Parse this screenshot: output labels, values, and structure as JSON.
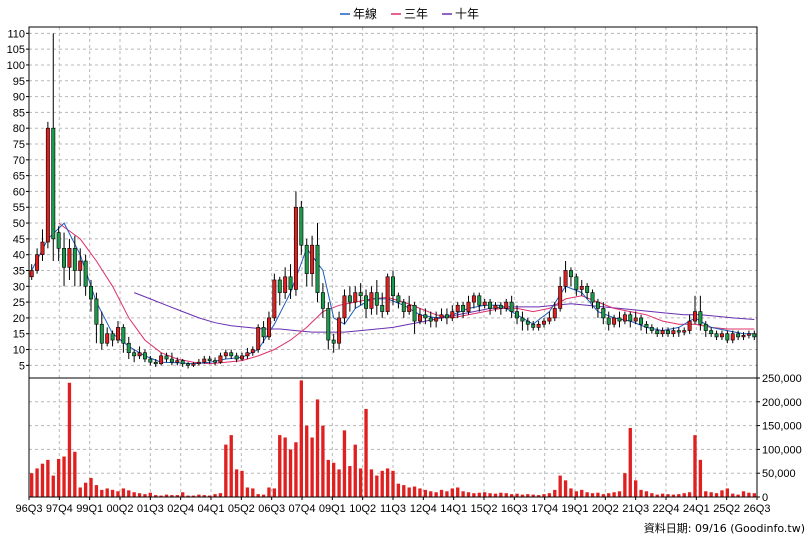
{
  "chart_data": {
    "type": "candlestick",
    "legend": {
      "placement": "top-center",
      "items": [
        {
          "label": "年線",
          "color": "#1f5fbf"
        },
        {
          "label": "三年",
          "color": "#e0306a"
        },
        {
          "label": "十年",
          "color": "#6a2fb0"
        }
      ]
    },
    "credit": "資料日期: 09/16  (Goodinfo.tw)",
    "x_labels": [
      "96Q3",
      "97Q4",
      "99Q1",
      "00Q2",
      "01Q3",
      "02Q4",
      "04Q1",
      "05Q2",
      "06Q3",
      "07Q4",
      "09Q1",
      "10Q2",
      "11Q3",
      "12Q4",
      "14Q1",
      "15Q2",
      "16Q3",
      "17Q4",
      "19Q1",
      "20Q2",
      "21Q3",
      "22Q4",
      "24Q1",
      "25Q2",
      "26Q3"
    ],
    "price_axis": {
      "ticks": [
        5,
        10,
        15,
        20,
        25,
        30,
        35,
        40,
        45,
        50,
        55,
        60,
        65,
        70,
        75,
        80,
        85,
        90,
        95,
        100,
        105,
        110
      ],
      "ylim": [
        1,
        112
      ],
      "grid": true
    },
    "volume_axis": {
      "ticks": [
        0,
        50000,
        100000,
        150000,
        200000,
        250000
      ],
      "tick_labels": [
        "0",
        "50,000",
        "100,000",
        "150,000",
        "200,000",
        "250,000"
      ],
      "ylim": [
        0,
        250000
      ],
      "grid": true
    },
    "colors": {
      "up": "#e02020",
      "down": "#1a9a4a",
      "wick": "#000000",
      "volume": "#e02020",
      "grid": "#b8b8b8"
    },
    "candles": [
      [
        33,
        35,
        32,
        37
      ],
      [
        35,
        40,
        34,
        42
      ],
      [
        40,
        44,
        38,
        48
      ],
      [
        44,
        80,
        42,
        82
      ],
      [
        80,
        45,
        38,
        110
      ],
      [
        47,
        42,
        38,
        49
      ],
      [
        42,
        36,
        30,
        47
      ],
      [
        36,
        42,
        32,
        45
      ],
      [
        42,
        35,
        30,
        46
      ],
      [
        35,
        38,
        30,
        42
      ],
      [
        38,
        30,
        27,
        40
      ],
      [
        30,
        26,
        22,
        32
      ],
      [
        26,
        18,
        12,
        28
      ],
      [
        18,
        12,
        10,
        22
      ],
      [
        12,
        15,
        11,
        17
      ],
      [
        15,
        13,
        11,
        16
      ],
      [
        13,
        17,
        12,
        19
      ],
      [
        17,
        12,
        9,
        18
      ],
      [
        12,
        9,
        7,
        14
      ],
      [
        9,
        8,
        6,
        10
      ],
      [
        8,
        9,
        7,
        11
      ],
      [
        9,
        7,
        6,
        10
      ],
      [
        7,
        6,
        5,
        8
      ],
      [
        6,
        5.5,
        4.5,
        7
      ],
      [
        5.5,
        8,
        5,
        9
      ],
      [
        8,
        7,
        6,
        9
      ],
      [
        7,
        6,
        5,
        9
      ],
      [
        6,
        6.5,
        5,
        7.5
      ],
      [
        6.5,
        5.5,
        4.5,
        7
      ],
      [
        5.5,
        5,
        4,
        6
      ],
      [
        5,
        5.5,
        4.5,
        6
      ],
      [
        5.5,
        6,
        5,
        7
      ],
      [
        6,
        7,
        5.5,
        8
      ],
      [
        7,
        6.5,
        5.5,
        8
      ],
      [
        6.5,
        6,
        5,
        7.5
      ],
      [
        6,
        8,
        5.5,
        9
      ],
      [
        8,
        9,
        7,
        10
      ],
      [
        9,
        8,
        7,
        10
      ],
      [
        8,
        7,
        6,
        9
      ],
      [
        7,
        8,
        6.5,
        9
      ],
      [
        8,
        9,
        7,
        10.5
      ],
      [
        9,
        10,
        8,
        11
      ],
      [
        10,
        17,
        9,
        18
      ],
      [
        17,
        14,
        12,
        19
      ],
      [
        14,
        20,
        13,
        22
      ],
      [
        20,
        32,
        19,
        34
      ],
      [
        32,
        28,
        24,
        33
      ],
      [
        28,
        33,
        26,
        36
      ],
      [
        33,
        29,
        26,
        37
      ],
      [
        29,
        55,
        27,
        60
      ],
      [
        55,
        43,
        40,
        57
      ],
      [
        43,
        34,
        30,
        45
      ],
      [
        34,
        43,
        30,
        46
      ],
      [
        43,
        28,
        25,
        50
      ],
      [
        28,
        23,
        20,
        31
      ],
      [
        23,
        13,
        10,
        25
      ],
      [
        13,
        12,
        9,
        15
      ],
      [
        12,
        20,
        10,
        22
      ],
      [
        20,
        27,
        18,
        29
      ],
      [
        27,
        25,
        22,
        30
      ],
      [
        25,
        28,
        23,
        30
      ],
      [
        28,
        27,
        24,
        31
      ],
      [
        27,
        23,
        20,
        29
      ],
      [
        23,
        28,
        21,
        30
      ],
      [
        28,
        24,
        21,
        32
      ],
      [
        24,
        22,
        20,
        28
      ],
      [
        22,
        33,
        21,
        34
      ],
      [
        33,
        27,
        24,
        35
      ],
      [
        27,
        25,
        23,
        28
      ],
      [
        25,
        22,
        20,
        26
      ],
      [
        22,
        24,
        21,
        27
      ],
      [
        24,
        19,
        15,
        25
      ],
      [
        19,
        21,
        18,
        23
      ],
      [
        21,
        20,
        18,
        23
      ],
      [
        20,
        19,
        17,
        22
      ],
      [
        19,
        20,
        17,
        22
      ],
      [
        20,
        21,
        19,
        23
      ],
      [
        21,
        20,
        18,
        23
      ],
      [
        20,
        22,
        19,
        24
      ],
      [
        22,
        24,
        20,
        25
      ],
      [
        24,
        22,
        20,
        25
      ],
      [
        22,
        25,
        21,
        27
      ],
      [
        25,
        27,
        23,
        28
      ],
      [
        27,
        24,
        22,
        28
      ],
      [
        24,
        25,
        23,
        26
      ],
      [
        25,
        23,
        21,
        26
      ],
      [
        23,
        24,
        22,
        25
      ],
      [
        24,
        23,
        21,
        25
      ],
      [
        23,
        25,
        22,
        26
      ],
      [
        25,
        22,
        20,
        27
      ],
      [
        22,
        20,
        18,
        24
      ],
      [
        20,
        19,
        16,
        22
      ],
      [
        19,
        18,
        16,
        20
      ],
      [
        18,
        17,
        16,
        19
      ],
      [
        17,
        18,
        16,
        19
      ],
      [
        18,
        19,
        17,
        20
      ],
      [
        19,
        20,
        18,
        22
      ],
      [
        20,
        23,
        19,
        25
      ],
      [
        23,
        30,
        22,
        33
      ],
      [
        30,
        35,
        28,
        38
      ],
      [
        35,
        33,
        30,
        36
      ],
      [
        33,
        29,
        27,
        34
      ],
      [
        29,
        30,
        27,
        32
      ],
      [
        30,
        28,
        26,
        31
      ],
      [
        28,
        25,
        23,
        29
      ],
      [
        25,
        23,
        20,
        26
      ],
      [
        23,
        20,
        18,
        25
      ],
      [
        20,
        18,
        16,
        22
      ],
      [
        18,
        20,
        17,
        21
      ],
      [
        20,
        19,
        17,
        22
      ],
      [
        19,
        21,
        18,
        22
      ],
      [
        21,
        19,
        17,
        22
      ],
      [
        19,
        20,
        18,
        22
      ],
      [
        20,
        18,
        16,
        21
      ],
      [
        18,
        17,
        15,
        19
      ],
      [
        17,
        16,
        15,
        18
      ],
      [
        16,
        15,
        14,
        17
      ],
      [
        15,
        16,
        14,
        17
      ],
      [
        16,
        15,
        14,
        17
      ],
      [
        15,
        16,
        14,
        17
      ],
      [
        16,
        15.5,
        14,
        17
      ],
      [
        15.5,
        16,
        14.5,
        17
      ],
      [
        16,
        19,
        15,
        21
      ],
      [
        19,
        22,
        18,
        27
      ],
      [
        22,
        18,
        16,
        27
      ],
      [
        18,
        16,
        14,
        19
      ],
      [
        16,
        15,
        14,
        17
      ],
      [
        15,
        14,
        13,
        16
      ],
      [
        14,
        15,
        13,
        16
      ],
      [
        15,
        13,
        12,
        16
      ],
      [
        13,
        15,
        12,
        16
      ],
      [
        15,
        14,
        13,
        16
      ],
      [
        14,
        14.5,
        13,
        15.5
      ],
      [
        14.5,
        15,
        13.5,
        16
      ],
      [
        15,
        14,
        13,
        16
      ]
    ],
    "volume": [
      50000,
      60000,
      70000,
      78000,
      45000,
      80000,
      85000,
      240000,
      95000,
      20000,
      30000,
      40000,
      25000,
      15000,
      18000,
      15000,
      12000,
      18000,
      14000,
      10000,
      8000,
      6000,
      9000,
      4000,
      3000,
      5000,
      4000,
      4000,
      10000,
      3000,
      3000,
      5000,
      4000,
      3000,
      6000,
      8000,
      110000,
      130000,
      58000,
      55000,
      20000,
      18000,
      6000,
      5000,
      20000,
      18000,
      130000,
      125000,
      100000,
      115000,
      245000,
      150000,
      125000,
      205000,
      150000,
      78000,
      72000,
      58000,
      140000,
      65000,
      110000,
      60000,
      185000,
      58000,
      45000,
      55000,
      60000,
      55000,
      28000,
      25000,
      20000,
      22000,
      18000,
      15000,
      12000,
      10000,
      15000,
      12000,
      18000,
      20000,
      12000,
      10000,
      8000,
      9000,
      10000,
      8000,
      7000,
      9000,
      8000,
      6000,
      7000,
      5000,
      6000,
      5000,
      4000,
      6000,
      8000,
      15000,
      45000,
      35000,
      18000,
      12000,
      15000,
      10000,
      8000,
      9000,
      6000,
      8000,
      10000,
      12000,
      50000,
      145000,
      35000,
      15000,
      12000,
      8000,
      5000,
      7000,
      6000,
      5000,
      6000,
      8000,
      10000,
      130000,
      78000,
      12000,
      10000,
      8000,
      14000,
      18000,
      7000,
      5000,
      12000,
      9000,
      8000
    ],
    "ma_year": [
      [
        0,
        35
      ],
      [
        3,
        45
      ],
      [
        6,
        50
      ],
      [
        9,
        40
      ],
      [
        12,
        25
      ],
      [
        15,
        15
      ],
      [
        18,
        11
      ],
      [
        21,
        8
      ],
      [
        24,
        6
      ],
      [
        27,
        5.8
      ],
      [
        30,
        5.5
      ],
      [
        33,
        6
      ],
      [
        36,
        7
      ],
      [
        39,
        7.5
      ],
      [
        42,
        10
      ],
      [
        45,
        18
      ],
      [
        48,
        28
      ],
      [
        51,
        42
      ],
      [
        54,
        35
      ],
      [
        56,
        20
      ],
      [
        58,
        18
      ],
      [
        60,
        23
      ],
      [
        63,
        26
      ],
      [
        66,
        26
      ],
      [
        69,
        24
      ],
      [
        72,
        21
      ],
      [
        75,
        20
      ],
      [
        78,
        21
      ],
      [
        81,
        23
      ],
      [
        84,
        24
      ],
      [
        87,
        24
      ],
      [
        90,
        21
      ],
      [
        93,
        18
      ],
      [
        96,
        22
      ],
      [
        99,
        30
      ],
      [
        102,
        28
      ],
      [
        105,
        22
      ],
      [
        108,
        20
      ],
      [
        111,
        19
      ],
      [
        114,
        17
      ],
      [
        117,
        16
      ],
      [
        120,
        17
      ],
      [
        123,
        20
      ],
      [
        126,
        17
      ],
      [
        129,
        16
      ],
      [
        132,
        15
      ],
      [
        134,
        15
      ]
    ],
    "ma_3year": [
      [
        5,
        50
      ],
      [
        9,
        45
      ],
      [
        12,
        38
      ],
      [
        15,
        30
      ],
      [
        18,
        20
      ],
      [
        21,
        13
      ],
      [
        24,
        9
      ],
      [
        27,
        7
      ],
      [
        30,
        6
      ],
      [
        33,
        5.5
      ],
      [
        36,
        6
      ],
      [
        39,
        6.5
      ],
      [
        42,
        8
      ],
      [
        45,
        10
      ],
      [
        48,
        13
      ],
      [
        51,
        17
      ],
      [
        54,
        22
      ],
      [
        57,
        24
      ],
      [
        60,
        25
      ],
      [
        63,
        26
      ],
      [
        66,
        26.5
      ],
      [
        69,
        25
      ],
      [
        72,
        23
      ],
      [
        75,
        21
      ],
      [
        78,
        20
      ],
      [
        81,
        21
      ],
      [
        84,
        22
      ],
      [
        87,
        23
      ],
      [
        90,
        23
      ],
      [
        93,
        22
      ],
      [
        96,
        23
      ],
      [
        99,
        26
      ],
      [
        102,
        27
      ],
      [
        105,
        25
      ],
      [
        108,
        23
      ],
      [
        111,
        22
      ],
      [
        114,
        21
      ],
      [
        117,
        19
      ],
      [
        120,
        18
      ],
      [
        123,
        18
      ],
      [
        126,
        17
      ],
      [
        129,
        16.5
      ],
      [
        132,
        16.5
      ],
      [
        134,
        16.5
      ]
    ],
    "ma_10year": [
      [
        19,
        28
      ],
      [
        22,
        26
      ],
      [
        25,
        24
      ],
      [
        28,
        22
      ],
      [
        31,
        20
      ],
      [
        34,
        18.5
      ],
      [
        37,
        17.5
      ],
      [
        40,
        17
      ],
      [
        43,
        16.5
      ],
      [
        46,
        16.5
      ],
      [
        49,
        16
      ],
      [
        52,
        15.5
      ],
      [
        55,
        15.5
      ],
      [
        58,
        15.5
      ],
      [
        61,
        16
      ],
      [
        64,
        16.5
      ],
      [
        67,
        17
      ],
      [
        70,
        18
      ],
      [
        73,
        19
      ],
      [
        76,
        20
      ],
      [
        79,
        21
      ],
      [
        82,
        22
      ],
      [
        85,
        23
      ],
      [
        88,
        23.5
      ],
      [
        91,
        23.5
      ],
      [
        94,
        23.5
      ],
      [
        97,
        24
      ],
      [
        100,
        24.5
      ],
      [
        103,
        24
      ],
      [
        106,
        23.5
      ],
      [
        109,
        23
      ],
      [
        112,
        22.5
      ],
      [
        115,
        22
      ],
      [
        118,
        21.5
      ],
      [
        121,
        21
      ],
      [
        124,
        21
      ],
      [
        127,
        20.5
      ],
      [
        130,
        20
      ],
      [
        134,
        19.5
      ]
    ]
  }
}
